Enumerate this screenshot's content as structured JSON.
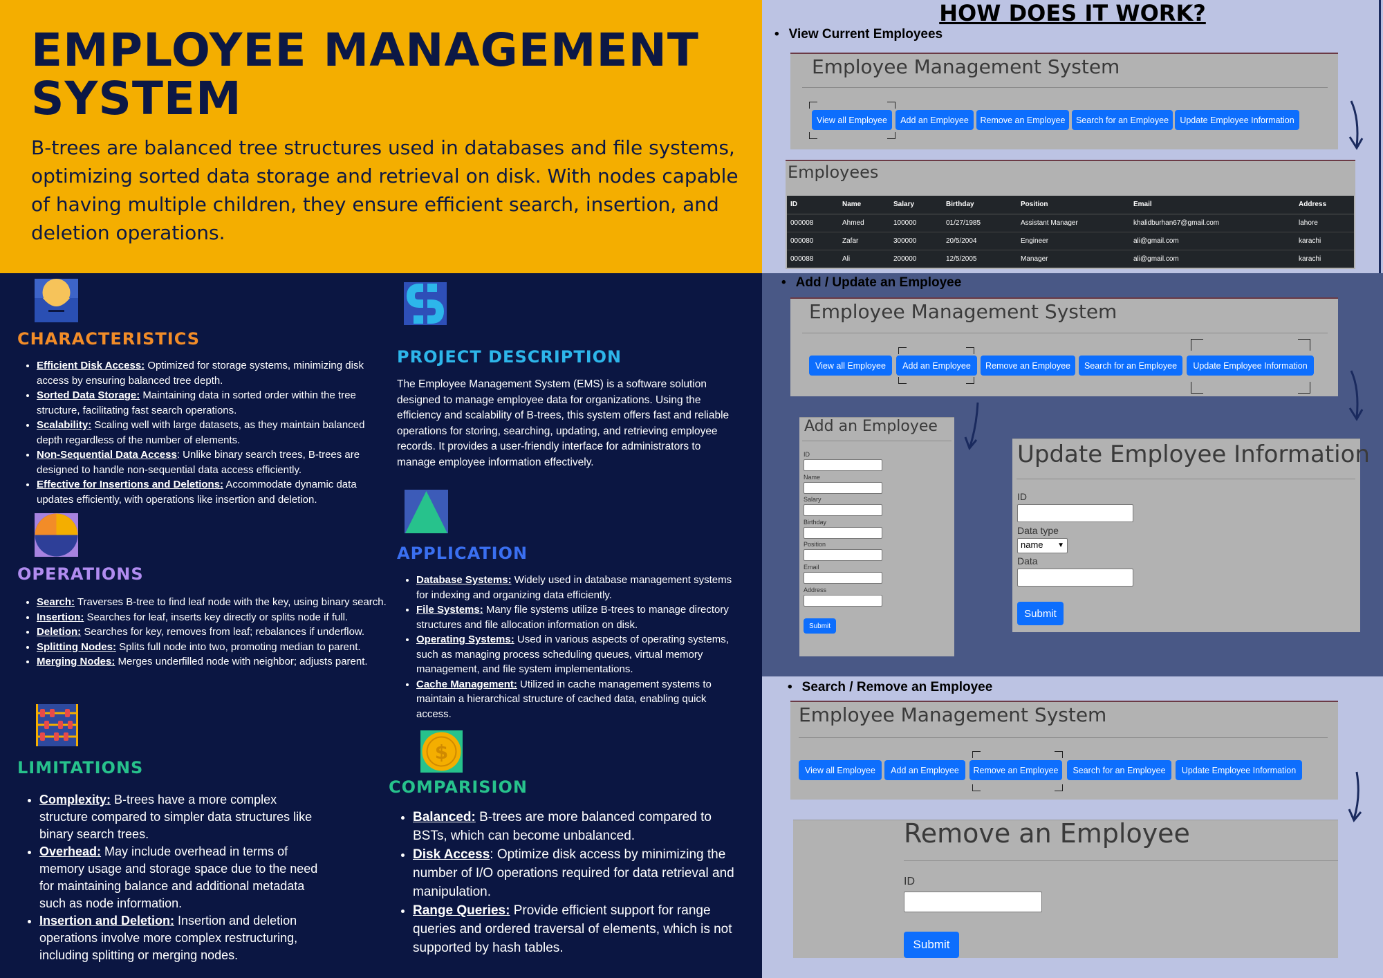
{
  "header": {
    "title": "EMPLOYEE MANAGEMENT SYSTEM",
    "intro": "B-trees are balanced tree structures used in databases and file systems, optimizing sorted data storage and retrieval on disk. With nodes capable of having multiple children, they ensure efficient search, insertion, and deletion operations."
  },
  "colors": {
    "header_bg": "#f4ae00",
    "body_bg": "#0b1642",
    "characteristics": "#f28c28",
    "operations": "#b18cf0",
    "limitations": "#27c28c",
    "project": "#2db6ea",
    "application": "#3a6ff0",
    "comparison": "#27c28c",
    "button": "#0d6efd"
  },
  "characteristics": {
    "icon": "sun-person-icon",
    "title": "CHARACTERISTICS",
    "items": [
      {
        "k": "Efficient Disk Access:",
        "v": " Optimized for storage systems, minimizing disk access by ensuring balanced tree depth."
      },
      {
        "k": "Sorted Data Storage:",
        "v": " Maintaining data in sorted order within the tree structure, facilitating fast search operations."
      },
      {
        "k": "Scalability:",
        "v": " Scaling well with large datasets, as they maintain balanced depth regardless of the number of elements."
      },
      {
        "k": "Non-Sequential Data Access",
        "v": ": Unlike binary search trees, B-trees are designed to handle non-sequential data access efficiently."
      },
      {
        "k": "Effective for Insertions and Deletions:",
        "v": " Accommodate dynamic data updates efficiently, with operations like insertion and deletion."
      }
    ]
  },
  "operations": {
    "icon": "half-circle-icon",
    "title": "OPERATIONS",
    "items": [
      {
        "k": "Search:",
        "v": " Traverses B-tree to find leaf node with the key, using binary search."
      },
      {
        "k": "Insertion:",
        "v": " Searches for leaf, inserts key directly or splits node if full."
      },
      {
        "k": "Deletion:",
        "v": " Searches for key, removes from leaf; rebalances if underflow."
      },
      {
        "k": "Splitting Nodes:",
        "v": " Splits full node into two, promoting median to parent."
      },
      {
        "k": "Merging Nodes:",
        "v": " Merges underfilled node with neighbor; adjusts parent."
      }
    ]
  },
  "limitations": {
    "icon": "abacus-icon",
    "title": "LIMITATIONS",
    "items": [
      {
        "k": "Complexity:",
        "v": " B-trees have a more complex structure compared to simpler data structures like binary search trees."
      },
      {
        "k": "Overhead:",
        "v": " May include overhead in terms of memory usage and storage space due to the need for maintaining balance and additional metadata such as node information."
      },
      {
        "k": "Insertion and Deletion:",
        "v": " Insertion and deletion operations involve more complex restructuring, including splitting or merging nodes."
      }
    ]
  },
  "project": {
    "icon": "s-logo-icon",
    "title": "PROJECT DESCRIPTION",
    "text": "The Employee Management System (EMS) is a software solution designed to manage employee data for organizations. Using the efficiency and scalability of B-trees, this system offers fast and reliable operations for storing, searching, updating, and retrieving employee records. It provides a user-friendly interface for administrators to manage employee information effectively."
  },
  "application": {
    "icon": "triangle-icon",
    "title": "APPLICATION",
    "items": [
      {
        "k": "Database Systems:",
        "v": " Widely used in database management systems for indexing and organizing data efficiently."
      },
      {
        "k": "File Systems:",
        "v": " Many file systems utilize B-trees to manage directory structures and file allocation information on disk."
      },
      {
        "k": "Operating Systems:",
        "v": " Used in various aspects of operating systems, such as managing process scheduling queues, virtual memory management, and file system implementations."
      },
      {
        "k": "Cache Management:",
        "v": " Utilized in cache management systems to maintain a hierarchical structure of cached data, enabling quick access."
      }
    ]
  },
  "comparison": {
    "icon": "dollar-coin-icon",
    "title": "COMPARISION",
    "items": [
      {
        "k": "Balanced:",
        "v": " B-trees are more balanced compared to BSTs, which can become unbalanced."
      },
      {
        "k": "Disk Access",
        "v": ": Optimize disk access by minimizing the number of I/O operations required for data retrieval and manipulation."
      },
      {
        "k": "Range Queries:",
        "v": " Provide efficient support for range queries and ordered traversal of elements, which is not supported by hash tables."
      }
    ]
  },
  "how": {
    "title": "HOW DOES IT WORK?",
    "steps": [
      "View Current Employees",
      "Add / Update an Employee",
      "Search / Remove an Employee"
    ],
    "app_title": "Employee Management System",
    "buttons": [
      "View all Employee",
      "Add an Employee",
      "Remove an Employee",
      "Search for an Employee",
      "Update Employee Information"
    ],
    "table": {
      "title": "Employees",
      "headers": [
        "ID",
        "Name",
        "Salary",
        "Birthday",
        "Position",
        "Email",
        "Address"
      ],
      "rows": [
        [
          "000008",
          "Ahmed",
          "100000",
          "01/27/1985",
          "Assistant Manager",
          "khalidburhan67@gmail.com",
          "lahore"
        ],
        [
          "000080",
          "Zafar",
          "300000",
          "20/5/2004",
          "Engineer",
          "ali@gmail.com",
          "karachi"
        ],
        [
          "000088",
          "Ali",
          "200000",
          "12/5/2005",
          "Manager",
          "ali@gmail.com",
          "karachi"
        ]
      ]
    },
    "add_form": {
      "title": "Add an Employee",
      "fields": [
        "ID",
        "Name",
        "Salary",
        "Birthday",
        "Position",
        "Email",
        "Address"
      ],
      "submit": "Submit"
    },
    "update_form": {
      "title": "Update Employee Information",
      "id_label": "ID",
      "type_label": "Data type",
      "type_value": "name",
      "data_label": "Data",
      "submit": "Submit"
    },
    "remove_form": {
      "title": "Remove an Employee",
      "id_label": "ID",
      "submit": "Submit"
    }
  }
}
